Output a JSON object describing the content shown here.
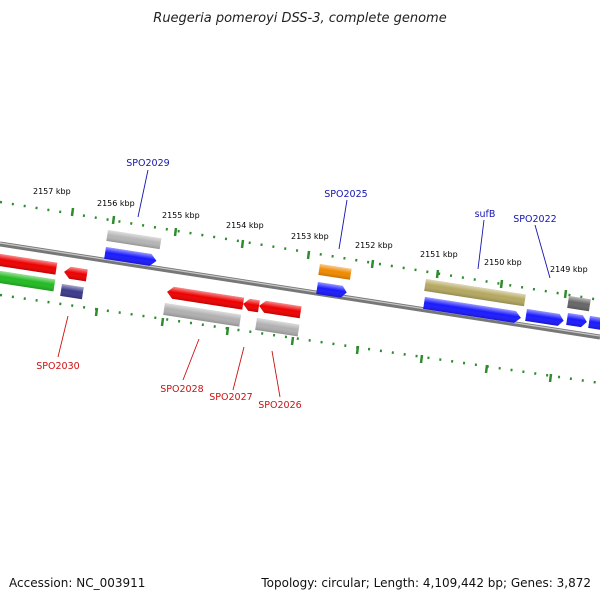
{
  "title": "Ruegeria pomeroyi DSS-3, complete genome",
  "footer": {
    "accession": "Accession: NC_003911",
    "summary": "Topology: circular; Length: 4,109,442 bp; Genes: 3,872"
  },
  "colors": {
    "backbone": "#8a8a8a",
    "ticks": "#2e8b2e",
    "forward_label": "#1515b0",
    "reverse_label": "#cc1111"
  },
  "ticks": [
    "2157 kbp",
    "2156 kbp",
    "2155 kbp",
    "2154 kbp",
    "2153 kbp",
    "2152 kbp",
    "2151 kbp",
    "2150 kbp",
    "2149 kbp"
  ],
  "labels_top": [
    "SPO2029",
    "SPO2025",
    "sufB",
    "SPO2022"
  ],
  "labels_bottom": [
    "SPO2030",
    "SPO2028",
    "SPO2027",
    "SPO2026"
  ]
}
